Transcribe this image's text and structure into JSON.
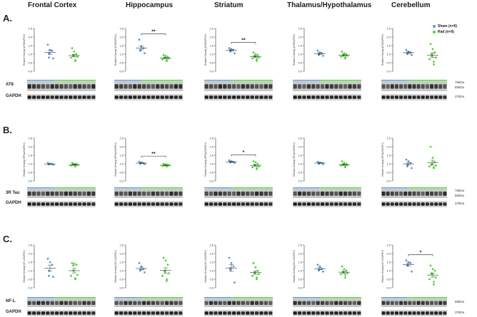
{
  "regions": [
    "Frontal   Cortex",
    "Hippocampus",
    "Striatum",
    "Thalamus/Hypothalamus",
    "Cerebellum"
  ],
  "legend": {
    "sham": {
      "label": "Sham (n=6)",
      "color": "#5b9bd5"
    },
    "rad": {
      "label": "Rad (n=9)",
      "color": "#4dd632"
    }
  },
  "rows": [
    {
      "label": "A.",
      "ylabel": "Relative Density (AT8/GAPDH)",
      "blot_label": "AT8",
      "control_label": "GAPDH",
      "kda": [
        "75kDa",
        "50kDa"
      ],
      "control_kda": "37kDa"
    },
    {
      "label": "B.",
      "ylabel": "Relative Density (3RTau/GAPDH)",
      "blot_label": "3R Tau",
      "control_label": "GAPDH",
      "kda": [
        "75kDa",
        "50kDa"
      ],
      "control_kda": "37kDa"
    },
    {
      "label": "C.",
      "ylabel": "Relative Density (NF-L/GAPDH)",
      "blot_label": "NF-L",
      "control_label": "GAPDH",
      "kda": [
        "68kDa"
      ],
      "control_kda": "37kDa"
    }
  ],
  "chart_data": [
    {
      "type": "scatter",
      "row": "A",
      "region": "Frontal Cortex",
      "ylim": [
        0,
        2.5
      ],
      "yticks": [
        "0.0",
        "0.5",
        "1.0",
        "1.5",
        "2.0",
        "2.5"
      ],
      "series": [
        {
          "name": "Sham (n=6)",
          "values": [
            1.55,
            1.25,
            1.2,
            1.05,
            0.8,
            0.75
          ]
        },
        {
          "name": "Rad (n=9)",
          "values": [
            1.35,
            1.15,
            1.0,
            0.95,
            0.9,
            0.85,
            0.8,
            0.65,
            0.6
          ]
        }
      ],
      "significance": ""
    },
    {
      "type": "scatter",
      "row": "A",
      "region": "Hippocampus",
      "ylim": [
        0,
        2.5
      ],
      "yticks": [
        "0.0",
        "0.5",
        "1.0",
        "1.5",
        "2.0",
        "2.5"
      ],
      "series": [
        {
          "name": "Sham (n=6)",
          "values": [
            1.85,
            1.45,
            1.35,
            1.25,
            1.2,
            1.05
          ]
        },
        {
          "name": "Rad (n=9)",
          "values": [
            0.95,
            0.9,
            0.85,
            0.8,
            0.78,
            0.75,
            0.7,
            0.65,
            0.6
          ]
        }
      ],
      "significance": "**"
    },
    {
      "type": "scatter",
      "row": "A",
      "region": "Striatum",
      "ylim": [
        0,
        2.5
      ],
      "yticks": [
        "0.0",
        "0.5",
        "1.0",
        "1.5",
        "2.0",
        "2.5"
      ],
      "series": [
        {
          "name": "Sham (n=6)",
          "values": [
            1.35,
            1.3,
            1.25,
            1.2,
            1.15,
            1.05
          ]
        },
        {
          "name": "Rad (n=9)",
          "values": [
            1.1,
            1.0,
            0.95,
            0.9,
            0.85,
            0.8,
            0.75,
            0.7,
            0.6
          ]
        }
      ],
      "significance": "**"
    },
    {
      "type": "scatter",
      "row": "A",
      "region": "Thalamus/Hypothalamus",
      "ylim": [
        0,
        2.5
      ],
      "yticks": [
        "0.0",
        "0.5",
        "1.0",
        "1.5",
        "2.0",
        "2.5"
      ],
      "series": [
        {
          "name": "Sham (n=6)",
          "values": [
            1.2,
            1.1,
            1.05,
            1.0,
            0.95,
            0.9
          ]
        },
        {
          "name": "Rad (n=9)",
          "values": [
            1.15,
            1.05,
            1.0,
            0.95,
            0.9,
            0.9,
            0.85,
            0.8,
            0.75
          ]
        }
      ],
      "significance": ""
    },
    {
      "type": "scatter",
      "row": "A",
      "region": "Cerebellum",
      "ylim": [
        0,
        2.5
      ],
      "yticks": [
        "0.0",
        "0.5",
        "1.0",
        "1.5",
        "2.0",
        "2.5"
      ],
      "series": [
        {
          "name": "Sham (n=6)",
          "values": [
            1.25,
            1.15,
            1.1,
            1.05,
            1.0,
            0.95
          ]
        },
        {
          "name": "Rad (n=9)",
          "values": [
            1.6,
            1.3,
            1.1,
            1.0,
            0.9,
            0.8,
            0.7,
            0.55,
            0.4
          ]
        }
      ],
      "significance": ""
    },
    {
      "type": "scatter",
      "row": "B",
      "region": "Frontal Cortex",
      "ylim": [
        0,
        2.5
      ],
      "yticks": [
        "0.0",
        "0.5",
        "1.0",
        "1.5",
        "2.0",
        "2.5"
      ],
      "series": [
        {
          "name": "Sham (n=6)",
          "values": [
            1.05,
            1.0,
            1.0,
            0.98,
            0.96,
            0.95
          ]
        },
        {
          "name": "Rad (n=9)",
          "values": [
            1.05,
            1.0,
            1.0,
            0.97,
            0.95,
            0.93,
            0.9,
            0.88,
            0.85
          ]
        }
      ],
      "significance": ""
    },
    {
      "type": "scatter",
      "row": "B",
      "region": "Hippocampus",
      "ylim": [
        0,
        2.5
      ],
      "yticks": [
        "0.0",
        "0.5",
        "1.0",
        "1.5",
        "2.0",
        "2.5"
      ],
      "series": [
        {
          "name": "Sham (n=6)",
          "values": [
            1.12,
            1.08,
            1.05,
            1.02,
            1.0,
            0.98
          ]
        },
        {
          "name": "Rad (n=9)",
          "values": [
            1.0,
            0.98,
            0.95,
            0.93,
            0.9,
            0.9,
            0.88,
            0.86,
            0.85
          ]
        }
      ],
      "significance": "**"
    },
    {
      "type": "scatter",
      "row": "B",
      "region": "Striatum",
      "ylim": [
        0,
        2.5
      ],
      "yticks": [
        "0.0",
        "0.5",
        "1.0",
        "1.5",
        "2.0",
        "2.5"
      ],
      "series": [
        {
          "name": "Sham (n=6)",
          "values": [
            1.2,
            1.15,
            1.12,
            1.1,
            1.08,
            1.05
          ]
        },
        {
          "name": "Rad (n=9)",
          "values": [
            1.15,
            1.1,
            1.0,
            0.95,
            0.9,
            0.85,
            0.8,
            0.75,
            0.7
          ]
        }
      ],
      "significance": "*"
    },
    {
      "type": "scatter",
      "row": "B",
      "region": "Thalamus/Hypothalamus",
      "ylim": [
        0,
        2.5
      ],
      "yticks": [
        "0.0",
        "0.5",
        "1.0",
        "1.5",
        "2.0",
        "2.5"
      ],
      "series": [
        {
          "name": "Sham (n=6)",
          "values": [
            1.12,
            1.08,
            1.05,
            1.03,
            1.0,
            0.98
          ]
        },
        {
          "name": "Rad (n=9)",
          "values": [
            1.15,
            1.05,
            1.0,
            0.98,
            0.95,
            0.92,
            0.9,
            0.85,
            0.8
          ]
        }
      ],
      "significance": ""
    },
    {
      "type": "scatter",
      "row": "B",
      "region": "Cerebellum",
      "ylim": [
        0,
        2.5
      ],
      "yticks": [
        "0.0",
        "0.5",
        "1.0",
        "1.5",
        "2.0",
        "2.5"
      ],
      "series": [
        {
          "name": "Sham (n=6)",
          "values": [
            1.25,
            1.15,
            1.05,
            0.95,
            0.85,
            0.75
          ]
        },
        {
          "name": "Rad (n=9)",
          "values": [
            2.0,
            1.35,
            1.1,
            1.0,
            0.95,
            0.9,
            0.85,
            0.8,
            0.75
          ]
        }
      ],
      "significance": ""
    },
    {
      "type": "scatter",
      "row": "C",
      "region": "Frontal Cortex",
      "ylim": [
        0,
        2.5
      ],
      "yticks": [
        "0.0",
        "0.5",
        "1.0",
        "1.5",
        "2.0",
        "2.5"
      ],
      "series": [
        {
          "name": "Sham (n=6)",
          "values": [
            1.7,
            1.5,
            1.35,
            1.0,
            0.7,
            0.65
          ]
        },
        {
          "name": "Rad (n=9)",
          "values": [
            1.45,
            1.4,
            1.35,
            1.3,
            1.0,
            0.75,
            0.7,
            0.55,
            0.5
          ]
        }
      ],
      "significance": ""
    },
    {
      "type": "scatter",
      "row": "C",
      "region": "Hippocampus",
      "ylim": [
        0,
        2.5
      ],
      "yticks": [
        "0.0",
        "0.5",
        "1.0",
        "1.5",
        "2.0",
        "2.5"
      ],
      "series": [
        {
          "name": "Sham (n=6)",
          "values": [
            1.45,
            1.25,
            1.1,
            1.05,
            1.0,
            0.9
          ]
        },
        {
          "name": "Rad (n=9)",
          "values": [
            1.75,
            1.6,
            1.35,
            1.0,
            0.95,
            0.85,
            0.7,
            0.5,
            0.4
          ]
        }
      ],
      "significance": ""
    },
    {
      "type": "scatter",
      "row": "C",
      "region": "Striatum",
      "ylim": [
        0,
        2.5
      ],
      "yticks": [
        "0.0",
        "0.5",
        "1.0",
        "1.5",
        "2.0",
        "2.5"
      ],
      "series": [
        {
          "name": "Sham (n=6)",
          "values": [
            1.75,
            1.45,
            1.25,
            1.15,
            1.05,
            0.3
          ]
        },
        {
          "name": "Rad (n=9)",
          "values": [
            1.45,
            1.2,
            1.0,
            0.9,
            0.85,
            0.8,
            0.7,
            0.6,
            0.5
          ]
        }
      ],
      "significance": ""
    },
    {
      "type": "scatter",
      "row": "C",
      "region": "Thalamus/Hypothalamus",
      "ylim": [
        0,
        2.5
      ],
      "yticks": [
        "0.0",
        "0.5",
        "1.0",
        "1.5",
        "2.0",
        "2.5"
      ],
      "series": [
        {
          "name": "Sham (n=6)",
          "values": [
            1.35,
            1.25,
            1.1,
            1.05,
            1.0,
            0.95
          ]
        },
        {
          "name": "Rad (n=9)",
          "values": [
            1.25,
            1.1,
            1.0,
            0.95,
            0.9,
            0.85,
            0.8,
            0.75,
            0.6
          ]
        }
      ],
      "significance": ""
    },
    {
      "type": "scatter",
      "row": "C",
      "region": "Cerebellum",
      "ylim": [
        0,
        2.5
      ],
      "yticks": [
        "0.0",
        "0.5",
        "1.0",
        "1.5",
        "2.0",
        "2.5"
      ],
      "series": [
        {
          "name": "Sham (n=6)",
          "values": [
            1.6,
            1.5,
            1.45,
            1.35,
            1.3,
            0.95
          ]
        },
        {
          "name": "Rad (n=9)",
          "values": [
            1.3,
            1.1,
            1.0,
            0.85,
            0.8,
            0.6,
            0.5,
            0.35,
            0.2
          ]
        }
      ],
      "significance": "*"
    }
  ]
}
